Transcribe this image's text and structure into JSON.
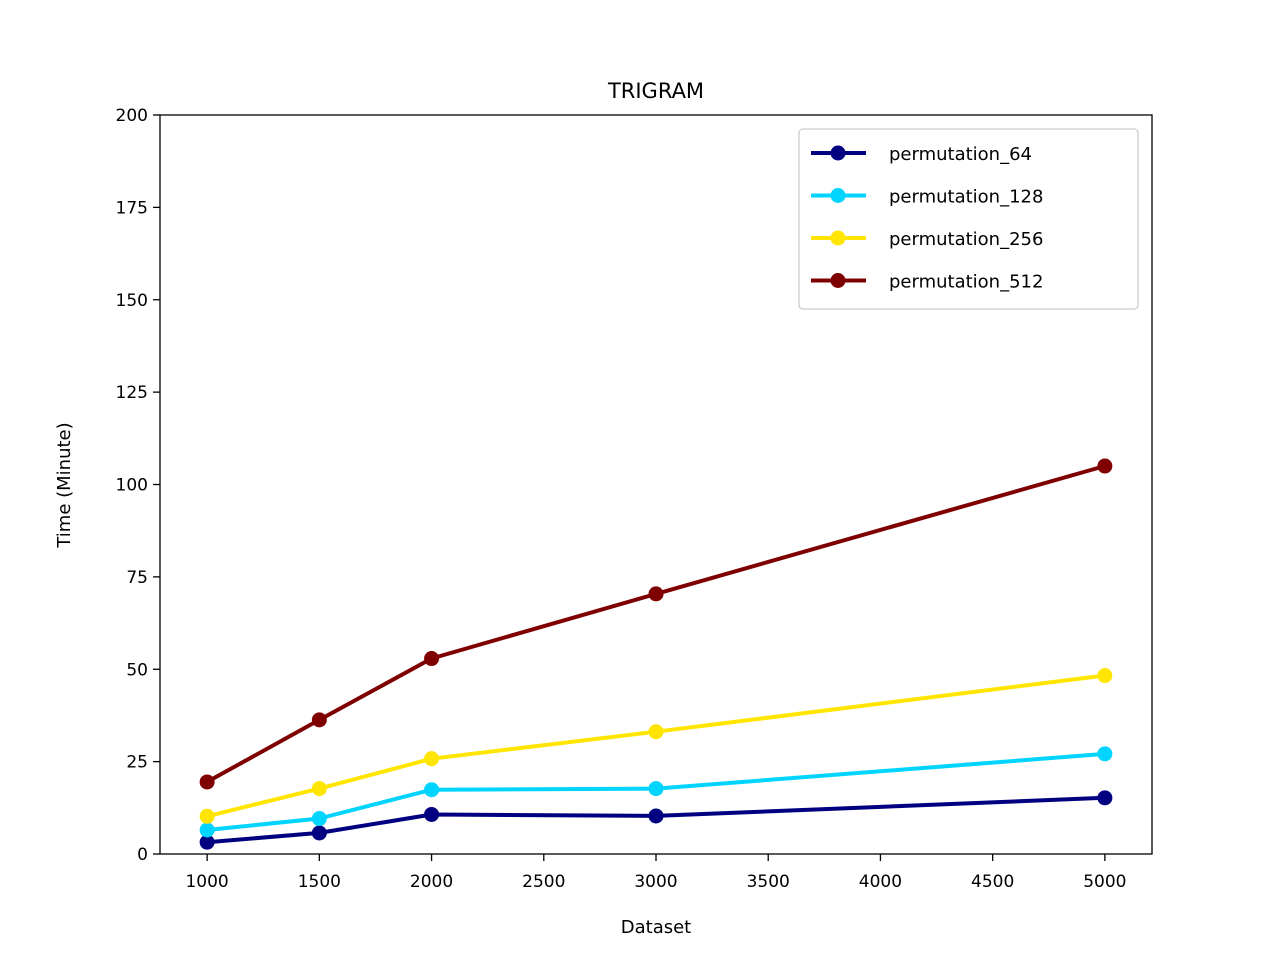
{
  "chart_data": {
    "type": "line",
    "title": "TRIGRAM",
    "xlabel": "Dataset",
    "ylabel": "Time (Minute)",
    "x": [
      1000,
      1500,
      2000,
      3000,
      5000
    ],
    "xlim": [
      790,
      5210
    ],
    "ylim": [
      0,
      200
    ],
    "xticks": [
      1000,
      1500,
      2000,
      2500,
      3000,
      3500,
      4000,
      4500,
      5000
    ],
    "yticks": [
      0,
      25,
      50,
      75,
      100,
      125,
      150,
      175,
      200
    ],
    "grid": false,
    "legend_position": "top-right",
    "series": [
      {
        "name": "permutation_64",
        "color": "#000080",
        "values": [
          3.2,
          5.7,
          10.7,
          10.3,
          15.2
        ]
      },
      {
        "name": "permutation_128",
        "color": "#00d4ff",
        "values": [
          6.5,
          9.6,
          17.4,
          17.7,
          27.1
        ]
      },
      {
        "name": "permutation_256",
        "color": "#ffe500",
        "values": [
          10.2,
          17.7,
          25.8,
          33.1,
          48.3
        ]
      },
      {
        "name": "permutation_512",
        "color": "#7f0000",
        "values": [
          19.5,
          36.3,
          52.9,
          70.4,
          105.0
        ]
      }
    ]
  }
}
